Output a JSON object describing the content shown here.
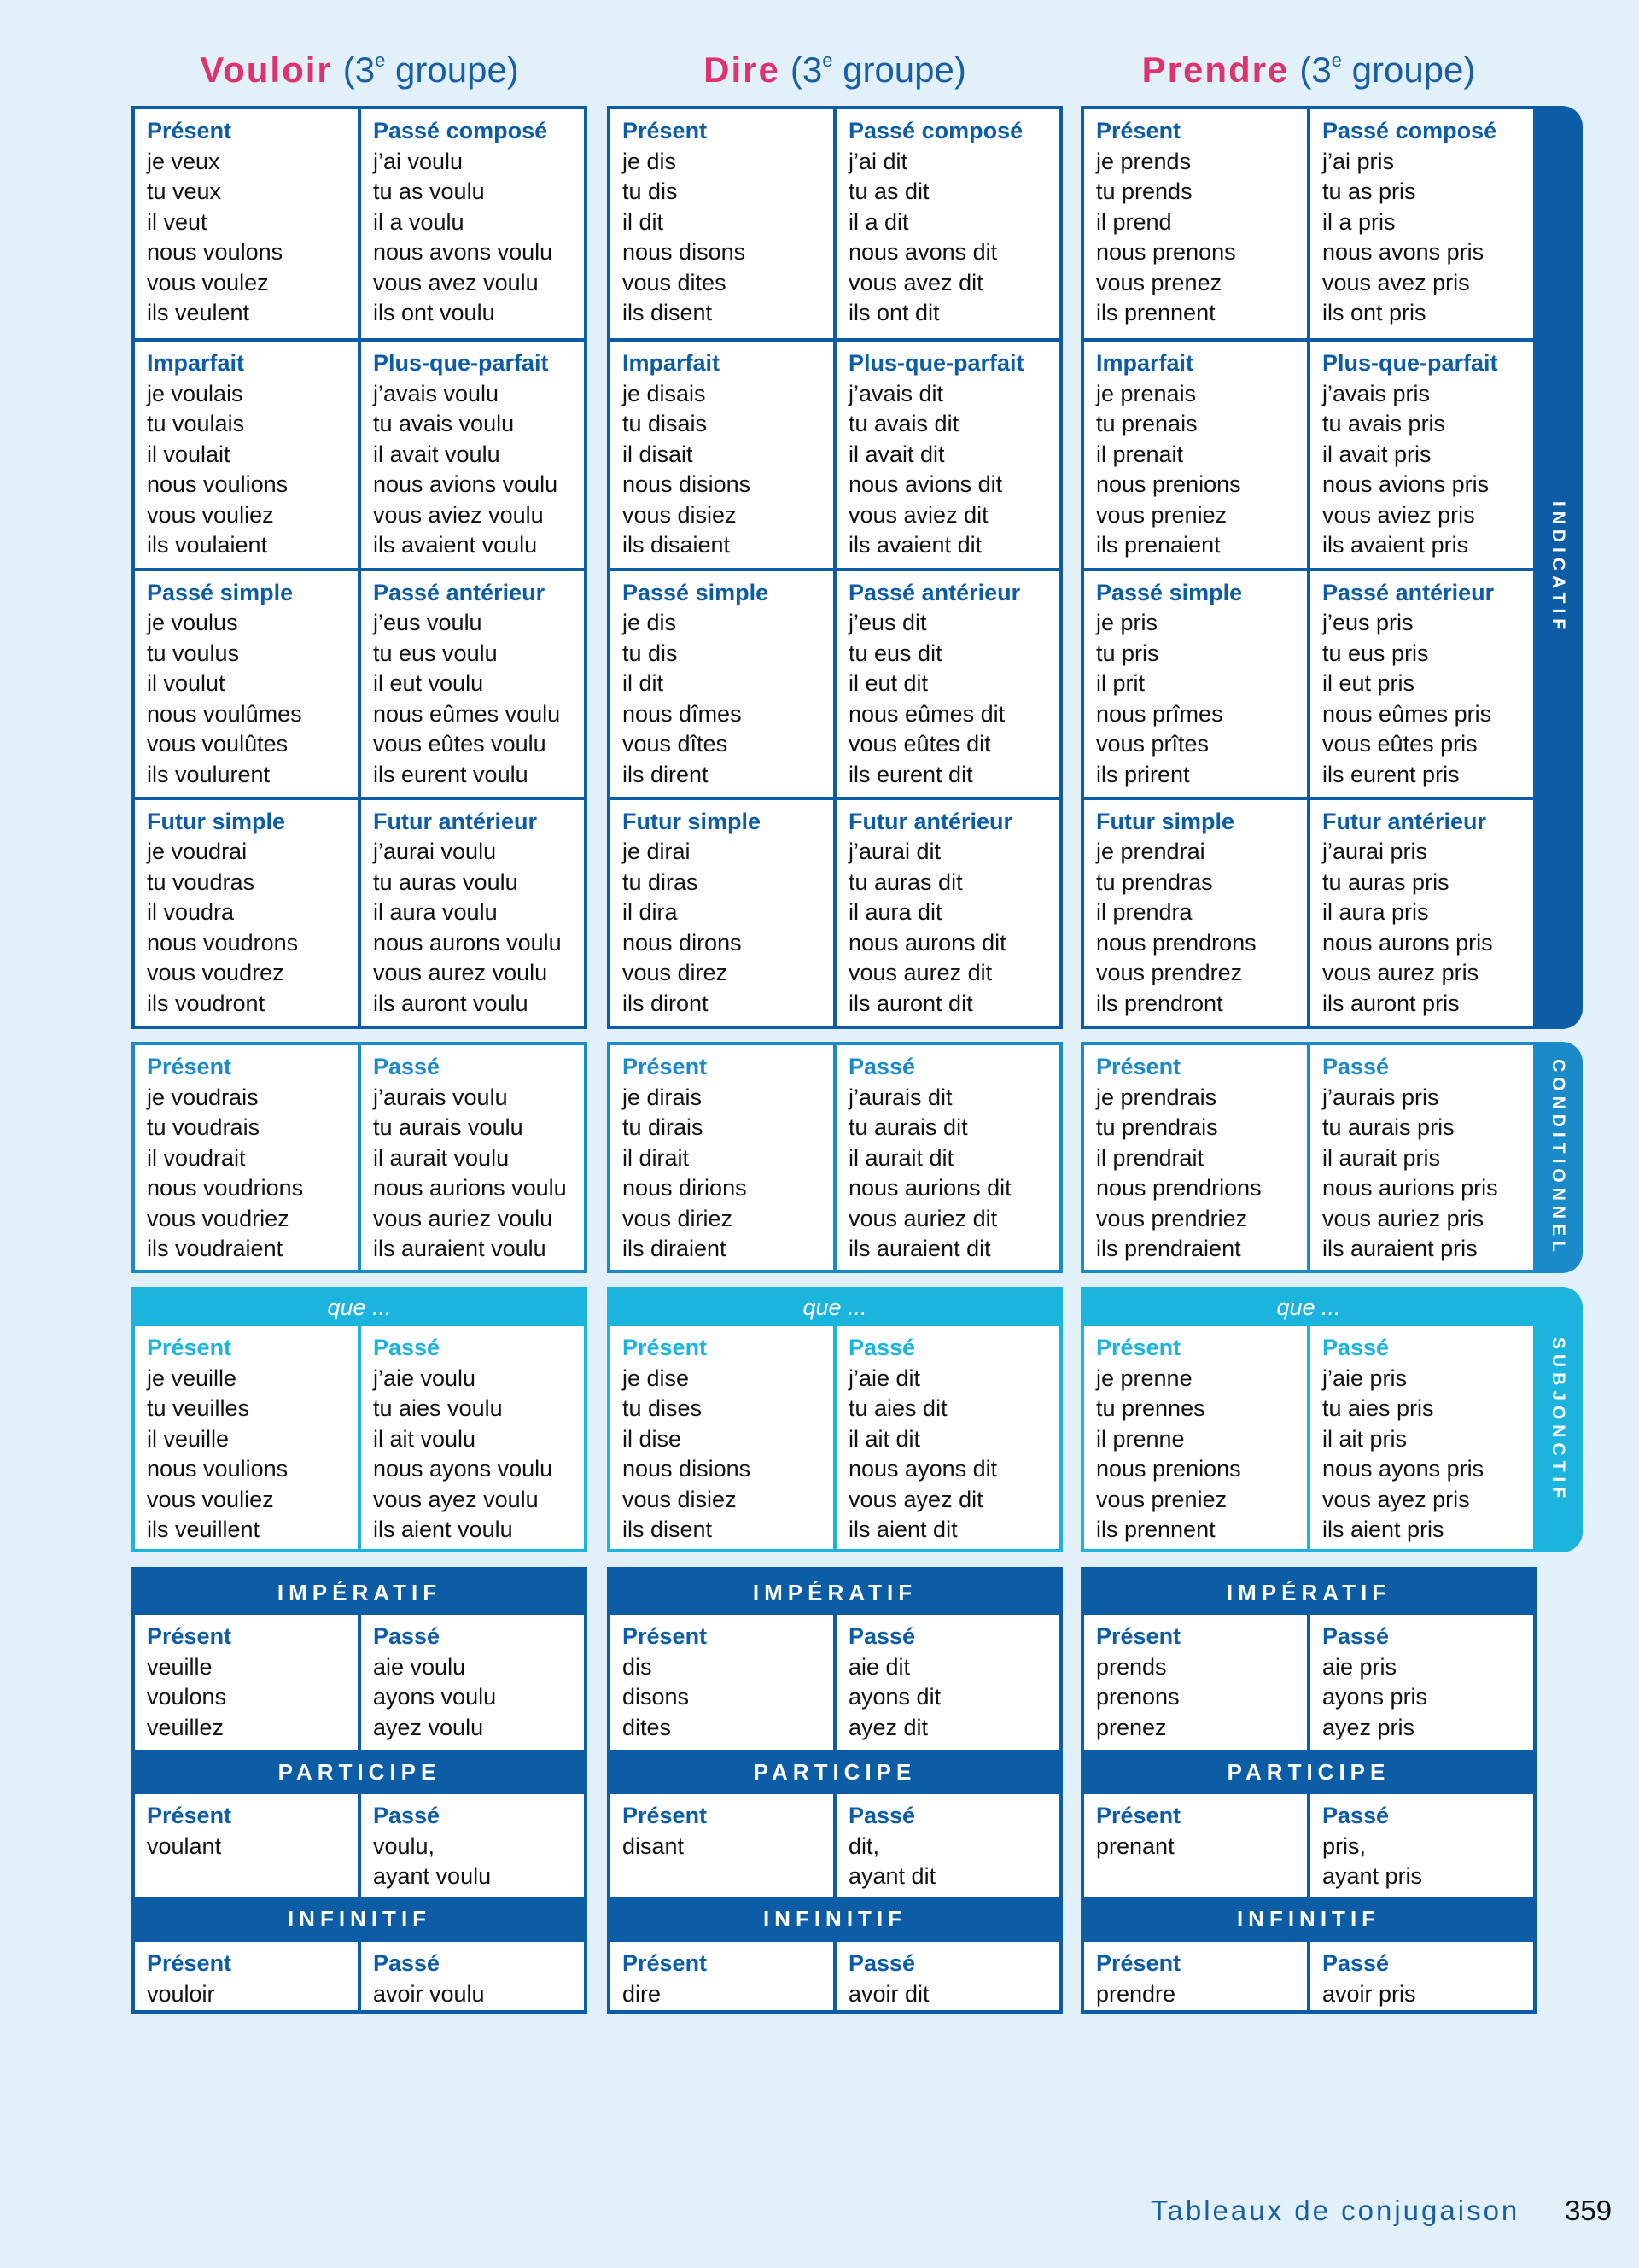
{
  "colors": {
    "indicatif": "#0c5da6",
    "conditionnel": "#1a8bc8",
    "subjonctif": "#1ab4dd",
    "verb_name": "#e0336e",
    "background": "#e1f0f9"
  },
  "tabs": {
    "indicatif": "INDICATIF",
    "conditionnel": "CONDITIONNEL",
    "subjonctif": "SUBJONCTIF"
  },
  "verbs": [
    {
      "name": "Vouloir",
      "group_prefix": "(3",
      "group_sup": "e",
      "group_suffix": " groupe)",
      "indicatif": [
        [
          {
            "t": "Présent",
            "l": [
              "je veux",
              "tu veux",
              "il veut",
              "nous voulons",
              "vous voulez",
              "ils veulent"
            ]
          },
          {
            "t": "Passé composé",
            "l": [
              "j’ai voulu",
              "tu as voulu",
              "il a voulu",
              "nous avons voulu",
              "vous avez voulu",
              "ils ont voulu"
            ]
          }
        ],
        [
          {
            "t": "Imparfait",
            "l": [
              "je voulais",
              "tu voulais",
              "il voulait",
              "nous voulions",
              "vous vouliez",
              "ils voulaient"
            ]
          },
          {
            "t": "Plus-que-parfait",
            "l": [
              "j’avais voulu",
              "tu avais voulu",
              "il avait voulu",
              "nous avions voulu",
              "vous aviez voulu",
              "ils avaient voulu"
            ]
          }
        ],
        [
          {
            "t": "Passé simple",
            "l": [
              "je voulus",
              "tu voulus",
              "il voulut",
              "nous voulûmes",
              "vous voulûtes",
              "ils voulurent"
            ]
          },
          {
            "t": "Passé antérieur",
            "l": [
              "j’eus voulu",
              "tu eus voulu",
              "il eut voulu",
              "nous eûmes voulu",
              "vous eûtes voulu",
              "ils eurent voulu"
            ]
          }
        ],
        [
          {
            "t": "Futur simple",
            "l": [
              "je voudrai",
              "tu voudras",
              "il voudra",
              "nous voudrons",
              "vous voudrez",
              "ils voudront"
            ]
          },
          {
            "t": "Futur antérieur",
            "l": [
              "j’aurai voulu",
              "tu auras voulu",
              "il aura voulu",
              "nous aurons voulu",
              "vous aurez voulu",
              "ils auront voulu"
            ]
          }
        ]
      ],
      "conditionnel": [
        {
          "t": "Présent",
          "l": [
            "je voudrais",
            "tu voudrais",
            "il voudrait",
            "nous voudrions",
            "vous voudriez",
            "ils voudraient"
          ]
        },
        {
          "t": "Passé",
          "l": [
            "j’aurais voulu",
            "tu aurais voulu",
            "il aurait voulu",
            "nous aurions voulu",
            "vous auriez voulu",
            "ils auraient voulu"
          ]
        }
      ],
      "subjonctif": {
        "que": "que ...",
        "cells": [
          {
            "t": "Présent",
            "l": [
              "je veuille",
              "tu veuilles",
              "il veuille",
              "nous voulions",
              "vous vouliez",
              "ils veuillent"
            ]
          },
          {
            "t": "Passé",
            "l": [
              "j’aie voulu",
              "tu aies voulu",
              "il ait voulu",
              "nous ayons voulu",
              "vous ayez voulu",
              "ils aient voulu"
            ]
          }
        ]
      },
      "imperatif": {
        "label": "IMPÉRATIF",
        "cells": [
          {
            "t": "Présent",
            "l": [
              "veuille",
              "voulons",
              "veuillez"
            ]
          },
          {
            "t": "Passé",
            "l": [
              "aie voulu",
              "ayons voulu",
              "ayez voulu"
            ]
          }
        ]
      },
      "participe": {
        "label": "PARTICIPE",
        "cells": [
          {
            "t": "Présent",
            "l": [
              "voulant"
            ]
          },
          {
            "t": "Passé",
            "l": [
              "voulu,",
              "ayant voulu"
            ]
          }
        ]
      },
      "infinitif": {
        "label": "INFINITIF",
        "cells": [
          {
            "t": "Présent",
            "l": [
              "vouloir"
            ]
          },
          {
            "t": "Passé",
            "l": [
              "avoir voulu"
            ]
          }
        ]
      }
    },
    {
      "name": "Dire",
      "group_prefix": "(3",
      "group_sup": "e",
      "group_suffix": " groupe)",
      "indicatif": [
        [
          {
            "t": "Présent",
            "l": [
              "je dis",
              "tu dis",
              "il dit",
              "nous disons",
              "vous dites",
              "ils disent"
            ]
          },
          {
            "t": "Passé composé",
            "l": [
              "j’ai dit",
              "tu as dit",
              "il a dit",
              "nous avons dit",
              "vous avez dit",
              "ils ont dit"
            ]
          }
        ],
        [
          {
            "t": "Imparfait",
            "l": [
              "je disais",
              "tu disais",
              "il disait",
              "nous disions",
              "vous disiez",
              "ils disaient"
            ]
          },
          {
            "t": "Plus-que-parfait",
            "l": [
              "j’avais dit",
              "tu avais dit",
              "il avait dit",
              "nous avions dit",
              "vous aviez dit",
              "ils avaient dit"
            ]
          }
        ],
        [
          {
            "t": "Passé simple",
            "l": [
              "je dis",
              "tu dis",
              "il dit",
              "nous dîmes",
              "vous dîtes",
              "ils dirent"
            ]
          },
          {
            "t": "Passé antérieur",
            "l": [
              "j’eus dit",
              "tu eus dit",
              "il eut dit",
              "nous eûmes dit",
              "vous eûtes dit",
              "ils eurent dit"
            ]
          }
        ],
        [
          {
            "t": "Futur simple",
            "l": [
              "je dirai",
              "tu diras",
              "il dira",
              "nous dirons",
              "vous direz",
              "ils diront"
            ]
          },
          {
            "t": "Futur antérieur",
            "l": [
              "j’aurai dit",
              "tu auras dit",
              "il aura dit",
              "nous aurons dit",
              "vous aurez dit",
              "ils auront dit"
            ]
          }
        ]
      ],
      "conditionnel": [
        {
          "t": "Présent",
          "l": [
            "je dirais",
            "tu dirais",
            "il dirait",
            "nous dirions",
            "vous diriez",
            "ils diraient"
          ]
        },
        {
          "t": "Passé",
          "l": [
            "j’aurais dit",
            "tu aurais dit",
            "il aurait dit",
            "nous aurions dit",
            "vous auriez dit",
            "ils auraient dit"
          ]
        }
      ],
      "subjonctif": {
        "que": "que ...",
        "cells": [
          {
            "t": "Présent",
            "l": [
              "je dise",
              "tu dises",
              "il dise",
              "nous disions",
              "vous disiez",
              "ils disent"
            ]
          },
          {
            "t": "Passé",
            "l": [
              "j’aie dit",
              "tu aies dit",
              "il ait dit",
              "nous ayons dit",
              "vous ayez dit",
              "ils aient dit"
            ]
          }
        ]
      },
      "imperatif": {
        "label": "IMPÉRATIF",
        "cells": [
          {
            "t": "Présent",
            "l": [
              "dis",
              "disons",
              "dites"
            ]
          },
          {
            "t": "Passé",
            "l": [
              "aie dit",
              "ayons dit",
              "ayez dit"
            ]
          }
        ]
      },
      "participe": {
        "label": "PARTICIPE",
        "cells": [
          {
            "t": "Présent",
            "l": [
              "disant"
            ]
          },
          {
            "t": "Passé",
            "l": [
              "dit,",
              "ayant dit"
            ]
          }
        ]
      },
      "infinitif": {
        "label": "INFINITIF",
        "cells": [
          {
            "t": "Présent",
            "l": [
              "dire"
            ]
          },
          {
            "t": "Passé",
            "l": [
              "avoir dit"
            ]
          }
        ]
      }
    },
    {
      "name": "Prendre",
      "group_prefix": "(3",
      "group_sup": "e",
      "group_suffix": " groupe)",
      "indicatif": [
        [
          {
            "t": "Présent",
            "l": [
              "je prends",
              "tu prends",
              "il prend",
              "nous prenons",
              "vous prenez",
              "ils prennent"
            ]
          },
          {
            "t": "Passé composé",
            "l": [
              "j’ai pris",
              "tu as pris",
              "il a pris",
              "nous avons pris",
              "vous avez pris",
              "ils ont pris"
            ]
          }
        ],
        [
          {
            "t": "Imparfait",
            "l": [
              "je prenais",
              "tu prenais",
              "il prenait",
              "nous prenions",
              "vous preniez",
              "ils prenaient"
            ]
          },
          {
            "t": "Plus-que-parfait",
            "l": [
              "j’avais pris",
              "tu avais pris",
              "il avait pris",
              "nous avions pris",
              "vous aviez pris",
              "ils avaient pris"
            ]
          }
        ],
        [
          {
            "t": "Passé simple",
            "l": [
              "je pris",
              "tu pris",
              "il prit",
              "nous prîmes",
              "vous prîtes",
              "ils prirent"
            ]
          },
          {
            "t": "Passé antérieur",
            "l": [
              "j’eus pris",
              "tu eus pris",
              "il eut pris",
              "nous eûmes pris",
              "vous eûtes pris",
              "ils eurent pris"
            ]
          }
        ],
        [
          {
            "t": "Futur simple",
            "l": [
              "je prendrai",
              "tu prendras",
              "il prendra",
              "nous prendrons",
              "vous prendrez",
              "ils prendront"
            ]
          },
          {
            "t": "Futur antérieur",
            "l": [
              "j’aurai pris",
              "tu auras pris",
              "il aura pris",
              "nous aurons pris",
              "vous aurez pris",
              "ils auront pris"
            ]
          }
        ]
      ],
      "conditionnel": [
        {
          "t": "Présent",
          "l": [
            "je prendrais",
            "tu prendrais",
            "il prendrait",
            "nous prendrions",
            "vous prendriez",
            "ils prendraient"
          ]
        },
        {
          "t": "Passé",
          "l": [
            "j’aurais pris",
            "tu aurais pris",
            "il aurait pris",
            "nous aurions pris",
            "vous auriez pris",
            "ils auraient pris"
          ]
        }
      ],
      "subjonctif": {
        "que": "que ...",
        "cells": [
          {
            "t": "Présent",
            "l": [
              "je prenne",
              "tu prennes",
              "il prenne",
              "nous prenions",
              "vous preniez",
              "ils prennent"
            ]
          },
          {
            "t": "Passé",
            "l": [
              "j’aie pris",
              "tu aies pris",
              "il ait pris",
              "nous ayons pris",
              "vous ayez pris",
              "ils aient pris"
            ]
          }
        ]
      },
      "imperatif": {
        "label": "IMPÉRATIF",
        "cells": [
          {
            "t": "Présent",
            "l": [
              "prends",
              "prenons",
              "prenez"
            ]
          },
          {
            "t": "Passé",
            "l": [
              "aie pris",
              "ayons pris",
              "ayez pris"
            ]
          }
        ]
      },
      "participe": {
        "label": "PARTICIPE",
        "cells": [
          {
            "t": "Présent",
            "l": [
              "prenant"
            ]
          },
          {
            "t": "Passé",
            "l": [
              "pris,",
              "ayant pris"
            ]
          }
        ]
      },
      "infinitif": {
        "label": "INFINITIF",
        "cells": [
          {
            "t": "Présent",
            "l": [
              "prendre"
            ]
          },
          {
            "t": "Passé",
            "l": [
              "avoir pris"
            ]
          }
        ]
      }
    }
  ],
  "footer": {
    "section": "Tableaux de conjugaison",
    "page": "359"
  }
}
